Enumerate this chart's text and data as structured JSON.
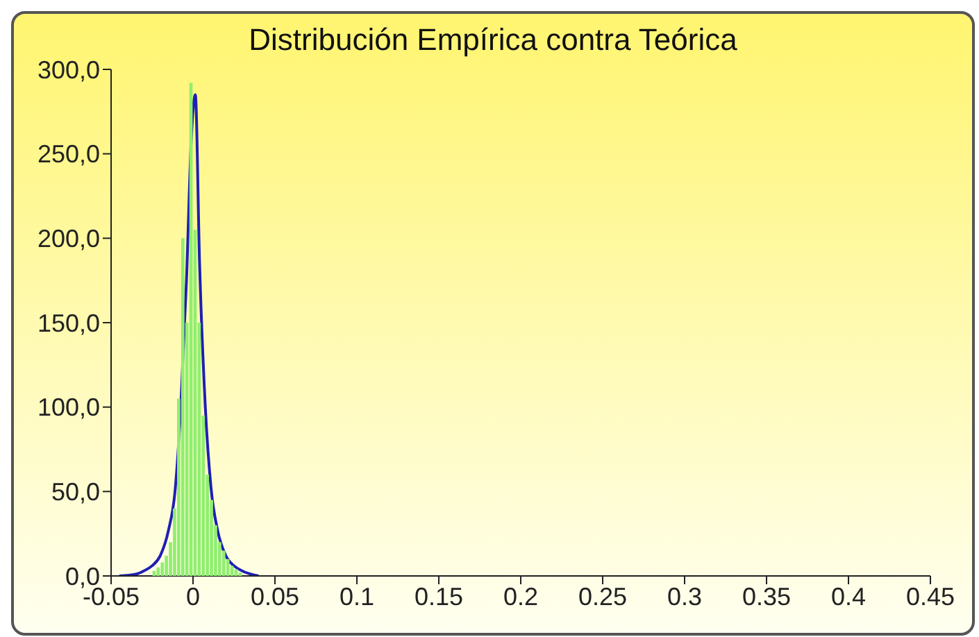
{
  "chart_data": {
    "type": "histogram",
    "title": "Distribución Empírica contra Teórica",
    "series": [
      {
        "color": "#90ee70",
        "bins": [
          -0.025,
          -0.0225,
          -0.02,
          -0.0175,
          -0.015,
          -0.0125,
          -0.01,
          -0.0075,
          -0.005,
          -0.0025,
          0,
          0.0025,
          0.005,
          0.0075,
          0.01,
          0.0125,
          0.015,
          0.0175,
          0.02,
          0.0225,
          0.025,
          0.0275,
          0.03
        ],
        "values": [
          3,
          5,
          8,
          12,
          20,
          40,
          105,
          200,
          150,
          292,
          205,
          150,
          95,
          60,
          45,
          30,
          20,
          15,
          10,
          6,
          4,
          2
        ]
      },
      {
        "type": "line",
        "color": "#1f1fb4",
        "x": [
          -0.045,
          -0.035,
          -0.03,
          -0.025,
          -0.02,
          -0.015,
          -0.011,
          -0.0075,
          -0.004,
          -0.001,
          0.0014,
          0.004,
          0.0075,
          0.011,
          0.015,
          0.02,
          0.025,
          0.03,
          0.04
        ],
        "values": [
          0,
          1,
          3,
          6,
          12,
          27,
          50,
          100,
          175,
          260,
          285,
          185,
          100,
          52,
          27,
          12,
          6,
          3,
          0
        ]
      }
    ],
    "xlim": [
      -0.05,
      0.45
    ],
    "xticks": [
      -0.05,
      0,
      0.05,
      0.1,
      0.15,
      0.2,
      0.25,
      0.3,
      0.35,
      0.4,
      0.45
    ],
    "ylim": [
      0,
      300
    ],
    "yticks": [
      {
        "value": 0,
        "label": "0,0"
      },
      {
        "value": 50,
        "label": "50,0"
      },
      {
        "value": 100,
        "label": "100,0"
      },
      {
        "value": 150,
        "label": "150,0"
      },
      {
        "value": 200,
        "label": "200,0"
      },
      {
        "value": 250,
        "label": "250,0"
      },
      {
        "value": 300,
        "label": "300,0"
      }
    ],
    "grid": false,
    "legend": false
  }
}
